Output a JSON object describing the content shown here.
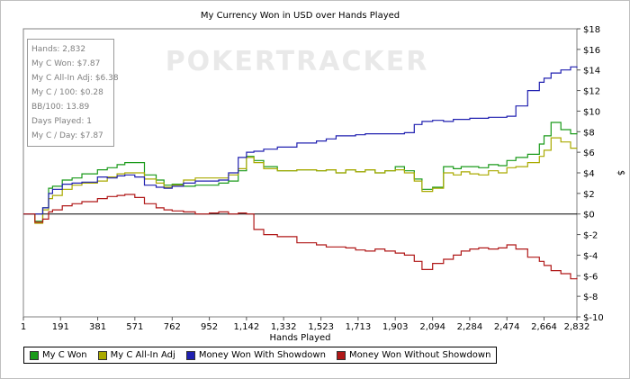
{
  "chart_data": {
    "type": "line",
    "title": "My Currency Won in USD over Hands Played",
    "xlabel": "Hands Played",
    "ylabel": "$",
    "watermark": "POKERTRACKER",
    "x_ticks": [
      "1",
      "191",
      "381",
      "571",
      "762",
      "952",
      "1,142",
      "1,332",
      "1,523",
      "1,713",
      "1,903",
      "2,094",
      "2,284",
      "2,474",
      "2,664",
      "2,832"
    ],
    "x_tick_values": [
      1,
      191,
      381,
      571,
      762,
      952,
      1142,
      1332,
      1523,
      1713,
      1903,
      2094,
      2284,
      2474,
      2664,
      2832
    ],
    "y_ticks": [
      "$18",
      "$16",
      "$14",
      "$12",
      "$10",
      "$8",
      "$6",
      "$4",
      "$2",
      "$0",
      "$-2",
      "$-4",
      "$-6",
      "$-8",
      "$-10"
    ],
    "y_tick_values": [
      18,
      16,
      14,
      12,
      10,
      8,
      6,
      4,
      2,
      0,
      -2,
      -4,
      -6,
      -8,
      -10
    ],
    "xlim": [
      1,
      2832
    ],
    "ylim": [
      -10,
      18
    ],
    "grid": false,
    "legend_position": "bottom-left",
    "stats_box": [
      "Hands: 2,832",
      "My C Won: $7.87",
      "My C All-In Adj: $6.38",
      "My C / 100: $0.28",
      "BB/100: 13.89",
      "Days Played: 1",
      "My C / Day: $7.87"
    ],
    "series": [
      {
        "name": "My C Won",
        "color": "#1a9a1a",
        "x": [
          1,
          60,
          100,
          130,
          150,
          200,
          250,
          300,
          380,
          430,
          480,
          520,
          571,
          620,
          680,
          720,
          762,
          820,
          880,
          952,
          1000,
          1050,
          1100,
          1142,
          1180,
          1230,
          1300,
          1400,
          1500,
          1550,
          1600,
          1650,
          1700,
          1750,
          1800,
          1850,
          1903,
          1950,
          2000,
          2040,
          2094,
          2150,
          2200,
          2240,
          2284,
          2330,
          2380,
          2430,
          2474,
          2520,
          2580,
          2640,
          2664,
          2700,
          2750,
          2800,
          2832
        ],
        "y": [
          0,
          -0.7,
          0.6,
          2.5,
          2.7,
          3.3,
          3.5,
          3.9,
          4.3,
          4.5,
          4.8,
          5.0,
          5.0,
          3.8,
          3.3,
          2.8,
          2.9,
          2.7,
          2.8,
          2.8,
          3.0,
          3.2,
          4.2,
          5.6,
          5.2,
          4.6,
          4.2,
          4.3,
          4.2,
          4.3,
          4.0,
          4.3,
          4.1,
          4.3,
          4.0,
          4.2,
          4.6,
          4.2,
          3.4,
          2.4,
          2.6,
          4.6,
          4.4,
          4.6,
          4.6,
          4.5,
          4.8,
          4.7,
          5.2,
          5.5,
          5.8,
          6.8,
          7.6,
          8.9,
          8.2,
          7.8,
          7.87
        ]
      },
      {
        "name": "My C All-In Adj",
        "color": "#aaaa00",
        "x": [
          1,
          60,
          100,
          130,
          150,
          200,
          250,
          300,
          380,
          430,
          480,
          520,
          571,
          620,
          680,
          720,
          762,
          820,
          880,
          952,
          1000,
          1050,
          1100,
          1142,
          1180,
          1230,
          1300,
          1400,
          1500,
          1550,
          1600,
          1650,
          1700,
          1750,
          1800,
          1850,
          1903,
          1950,
          2000,
          2040,
          2094,
          2150,
          2200,
          2240,
          2284,
          2330,
          2380,
          2430,
          2474,
          2520,
          2580,
          2640,
          2664,
          2700,
          2750,
          2800,
          2832
        ],
        "y": [
          0,
          -0.9,
          0.4,
          1.5,
          1.8,
          2.4,
          2.8,
          3.0,
          3.2,
          3.6,
          3.9,
          4.0,
          4.0,
          3.4,
          3.0,
          2.6,
          2.8,
          3.3,
          3.5,
          3.5,
          3.5,
          3.8,
          4.4,
          5.5,
          5.0,
          4.4,
          4.2,
          4.3,
          4.2,
          4.3,
          4.0,
          4.3,
          4.1,
          4.3,
          4.0,
          4.2,
          4.3,
          4.0,
          3.2,
          2.2,
          2.5,
          4.0,
          3.8,
          4.1,
          3.9,
          3.8,
          4.2,
          4.0,
          4.5,
          4.6,
          5.0,
          5.6,
          6.2,
          7.4,
          7.0,
          6.4,
          6.38
        ]
      },
      {
        "name": "Money Won With Showdown",
        "color": "#2020b0",
        "x": [
          1,
          60,
          100,
          130,
          150,
          200,
          250,
          300,
          380,
          430,
          480,
          520,
          571,
          620,
          680,
          720,
          762,
          820,
          880,
          952,
          1000,
          1050,
          1100,
          1142,
          1180,
          1230,
          1300,
          1400,
          1500,
          1550,
          1600,
          1650,
          1700,
          1750,
          1800,
          1850,
          1903,
          1950,
          2000,
          2040,
          2094,
          2150,
          2200,
          2240,
          2284,
          2330,
          2380,
          2430,
          2474,
          2520,
          2580,
          2640,
          2664,
          2700,
          2750,
          2800,
          2832
        ],
        "y": [
          0,
          0,
          0.6,
          2.0,
          2.4,
          2.9,
          3.0,
          3.1,
          3.6,
          3.5,
          3.7,
          3.8,
          3.6,
          2.8,
          2.6,
          2.5,
          2.7,
          3.0,
          3.2,
          3.2,
          3.3,
          4.0,
          5.5,
          6.0,
          6.1,
          6.3,
          6.5,
          6.9,
          7.1,
          7.3,
          7.6,
          7.6,
          7.7,
          7.8,
          7.8,
          7.8,
          7.8,
          7.9,
          8.7,
          9.0,
          9.1,
          9.0,
          9.2,
          9.2,
          9.3,
          9.3,
          9.4,
          9.4,
          9.5,
          10.5,
          12.0,
          12.8,
          13.2,
          13.7,
          14.0,
          14.3,
          14.2
        ]
      },
      {
        "name": "Money Won Without Showdown",
        "color": "#b01818",
        "x": [
          1,
          60,
          100,
          130,
          150,
          200,
          250,
          300,
          380,
          430,
          480,
          520,
          571,
          620,
          680,
          720,
          762,
          820,
          880,
          952,
          1000,
          1050,
          1100,
          1142,
          1180,
          1230,
          1300,
          1400,
          1500,
          1550,
          1600,
          1650,
          1700,
          1750,
          1800,
          1850,
          1903,
          1950,
          2000,
          2040,
          2094,
          2150,
          2200,
          2240,
          2284,
          2330,
          2380,
          2430,
          2474,
          2520,
          2580,
          2640,
          2664,
          2700,
          2750,
          2800,
          2832
        ],
        "y": [
          0,
          -0.8,
          -0.5,
          0.2,
          0.4,
          0.8,
          1.0,
          1.2,
          1.5,
          1.7,
          1.8,
          1.9,
          1.6,
          1.0,
          0.6,
          0.4,
          0.3,
          0.2,
          0.0,
          0.1,
          0.2,
          0.0,
          0.1,
          0.0,
          -1.5,
          -2.0,
          -2.2,
          -2.8,
          -3.0,
          -3.2,
          -3.2,
          -3.3,
          -3.5,
          -3.6,
          -3.4,
          -3.6,
          -3.8,
          -4.0,
          -4.6,
          -5.4,
          -4.8,
          -4.4,
          -4.0,
          -3.6,
          -3.4,
          -3.3,
          -3.4,
          -3.3,
          -3.0,
          -3.4,
          -4.2,
          -4.6,
          -5.0,
          -5.5,
          -5.8,
          -6.3,
          -6.2
        ]
      }
    ]
  }
}
